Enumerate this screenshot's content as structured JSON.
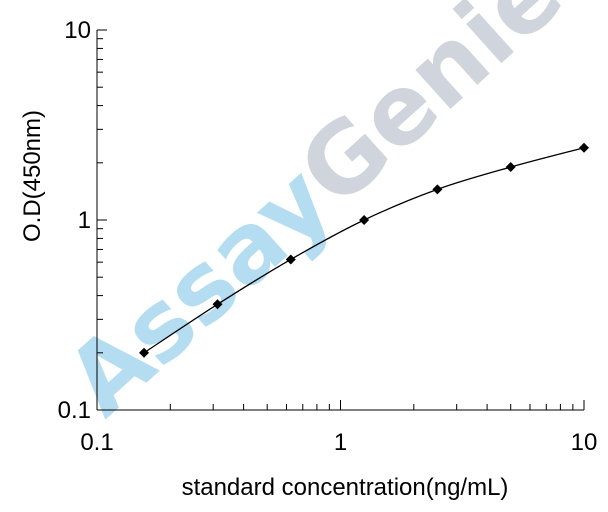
{
  "chart_data": {
    "type": "line",
    "xscale": "log",
    "yscale": "log",
    "xlim": [
      0.1,
      10
    ],
    "ylim": [
      0.1,
      10
    ],
    "xlabel": "standard concentration(ng/mL)",
    "ylabel": "O.D(450nm)",
    "x_ticks": [
      {
        "value": 0.1,
        "label": "0.1"
      },
      {
        "value": 1,
        "label": "1"
      },
      {
        "value": 10,
        "label": "10"
      }
    ],
    "y_ticks": [
      {
        "value": 0.1,
        "label": "0.1"
      },
      {
        "value": 1,
        "label": "1"
      },
      {
        "value": 10,
        "label": "10"
      }
    ],
    "grid": false,
    "series": [
      {
        "marker": "diamond",
        "color": "#000000",
        "x": [
          0.156,
          0.3125,
          0.625,
          1.25,
          2.5,
          5,
          10
        ],
        "y": [
          0.2,
          0.36,
          0.62,
          1.0,
          1.45,
          1.9,
          2.4
        ]
      }
    ]
  },
  "watermark": {
    "text_part1": "Assay",
    "text_part2": "Genie",
    "color1": "#a8d8f0",
    "color2": "#c8cdd6"
  }
}
